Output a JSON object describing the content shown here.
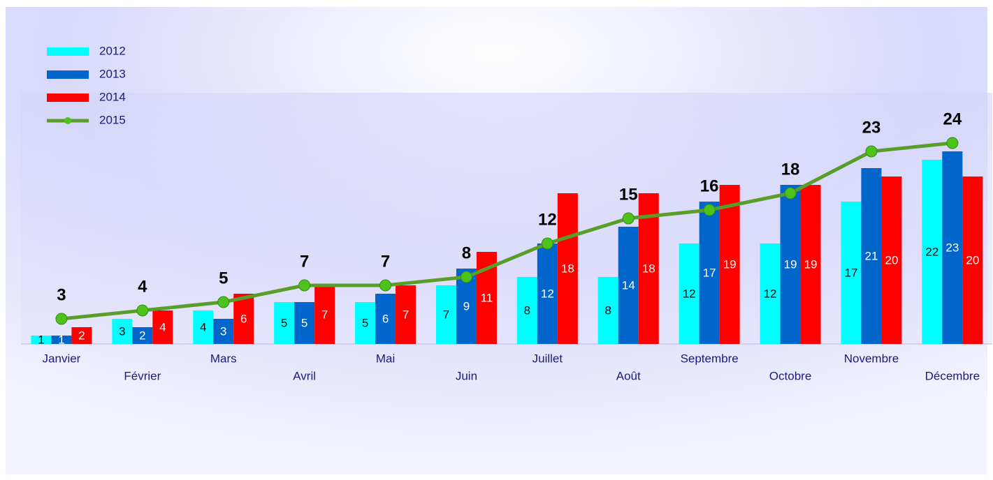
{
  "chart_data": {
    "type": "bar-line",
    "categories": [
      "Janvier",
      "Février",
      "Mars",
      "Avril",
      "Mai",
      "Juin",
      "Juillet",
      "Août",
      "Septembre",
      "Octobre",
      "Novembre",
      "Décembre"
    ],
    "series": [
      {
        "name": "2012",
        "type": "bar",
        "color": "#00ffff",
        "values": [
          1,
          3,
          4,
          5,
          5,
          7,
          8,
          8,
          12,
          12,
          17,
          22
        ]
      },
      {
        "name": "2013",
        "type": "bar",
        "color": "#0066cc",
        "values": [
          1,
          2,
          3,
          5,
          6,
          9,
          12,
          14,
          17,
          19,
          21,
          23
        ]
      },
      {
        "name": "2014",
        "type": "bar",
        "color": "#ff0000",
        "values": [
          2,
          4,
          6,
          7,
          7,
          11,
          18,
          18,
          19,
          19,
          20,
          20
        ]
      },
      {
        "name": "2015",
        "type": "line",
        "color": "#5a9e2a",
        "values": [
          3,
          4,
          5,
          7,
          7,
          8,
          12,
          15,
          16,
          18,
          23,
          24
        ]
      }
    ],
    "ylim": [
      0,
      30
    ],
    "legend": "top-left"
  }
}
